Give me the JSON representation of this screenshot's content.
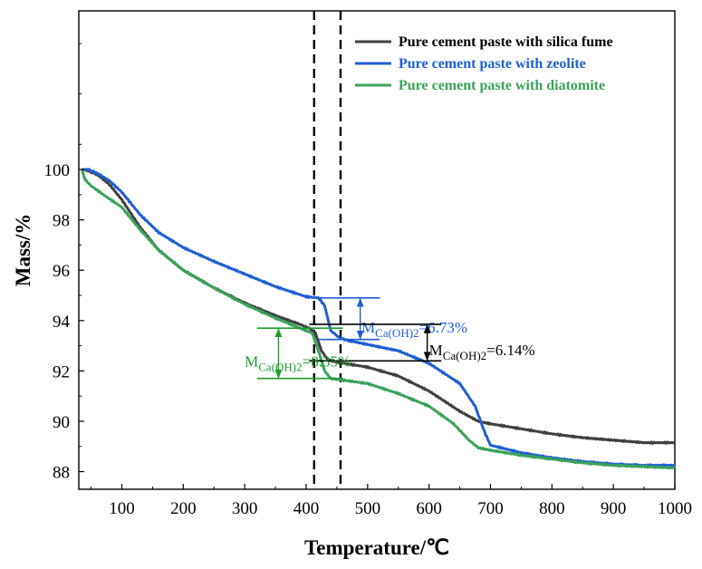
{
  "chart_data": {
    "type": "line",
    "title": "",
    "xlabel": "Temperature/℃",
    "ylabel": "Mass/%",
    "xlim": [
      30,
      1000
    ],
    "ylim": [
      87.3,
      106.3
    ],
    "x_ticks": [
      100,
      200,
      300,
      400,
      500,
      600,
      700,
      800,
      900,
      1000
    ],
    "y_ticks": [
      88,
      90,
      92,
      94,
      96,
      98,
      100
    ],
    "grid": false,
    "legend_position": "top-right",
    "series": [
      {
        "name": "Pure cement paste with silica fume",
        "color": "#404040",
        "x": [
          35,
          45,
          60,
          80,
          100,
          130,
          160,
          200,
          250,
          300,
          350,
          390,
          405,
          415,
          425,
          435,
          450,
          500,
          550,
          600,
          650,
          680,
          700,
          750,
          800,
          850,
          900,
          950,
          1000
        ],
        "y": [
          100.0,
          99.95,
          99.8,
          99.4,
          98.8,
          97.7,
          96.8,
          96.0,
          95.3,
          94.7,
          94.2,
          93.85,
          93.7,
          93.5,
          92.8,
          92.45,
          92.35,
          92.15,
          91.8,
          91.2,
          90.4,
          90.0,
          89.9,
          89.7,
          89.5,
          89.35,
          89.25,
          89.15,
          89.15
        ]
      },
      {
        "name": "Pure cement paste with zeolite",
        "color": "#1f5fd6",
        "x": [
          35,
          45,
          60,
          80,
          100,
          130,
          160,
          200,
          250,
          300,
          350,
          400,
          420,
          430,
          440,
          455,
          470,
          500,
          550,
          600,
          650,
          675,
          690,
          700,
          750,
          800,
          850,
          900,
          950,
          1000
        ],
        "y": [
          100.0,
          100.0,
          99.85,
          99.55,
          99.1,
          98.2,
          97.5,
          96.9,
          96.35,
          95.85,
          95.35,
          94.95,
          94.9,
          94.6,
          93.6,
          93.3,
          93.2,
          93.05,
          92.8,
          92.3,
          91.5,
          90.6,
          89.6,
          89.05,
          88.75,
          88.55,
          88.4,
          88.3,
          88.25,
          88.25
        ]
      },
      {
        "name": "Pure cement paste with diatomite",
        "color": "#3aa35b",
        "x": [
          35,
          40,
          50,
          70,
          100,
          130,
          160,
          200,
          250,
          300,
          350,
          390,
          410,
          420,
          430,
          440,
          455,
          500,
          550,
          600,
          640,
          665,
          680,
          700,
          750,
          800,
          850,
          900,
          950,
          1000
        ],
        "y": [
          100.0,
          99.6,
          99.35,
          99.0,
          98.5,
          97.6,
          96.8,
          96.0,
          95.3,
          94.65,
          94.1,
          93.7,
          93.5,
          92.8,
          92.0,
          91.7,
          91.65,
          91.5,
          91.1,
          90.6,
          89.9,
          89.25,
          88.95,
          88.85,
          88.65,
          88.5,
          88.35,
          88.25,
          88.2,
          88.15
        ]
      }
    ],
    "reference_lines": [
      {
        "type": "vertical",
        "x": 413,
        "style": "dashed"
      },
      {
        "type": "vertical",
        "x": 456,
        "style": "dashed"
      }
    ],
    "annotations": [
      {
        "label_main": "M",
        "label_sub": "Ca(OH)2",
        "label_value": "=6.73%",
        "color": "#1f5fd6",
        "x_start": 420,
        "x_end": 520,
        "y_top": 94.9,
        "y_bottom": 93.25,
        "arrow_x": 488,
        "text_x": 490,
        "text_y": 93.75
      },
      {
        "label_main": "M",
        "label_sub": "Ca(OH)2",
        "label_value": "=6.14%",
        "color": "#000000",
        "x_start": 405,
        "x_end": 620,
        "y_top": 93.85,
        "y_bottom": 92.4,
        "arrow_x": 597,
        "text_x": 600,
        "text_y": 92.85
      },
      {
        "label_main": "M",
        "label_sub": "Ca(OH)2",
        "label_value": "=8.35%",
        "color": "#1e9e2e",
        "x_start": 320,
        "x_end": 460,
        "y_top": 93.7,
        "y_bottom": 91.7,
        "arrow_x": 355,
        "text_x": 300,
        "text_y": 92.4
      }
    ]
  }
}
